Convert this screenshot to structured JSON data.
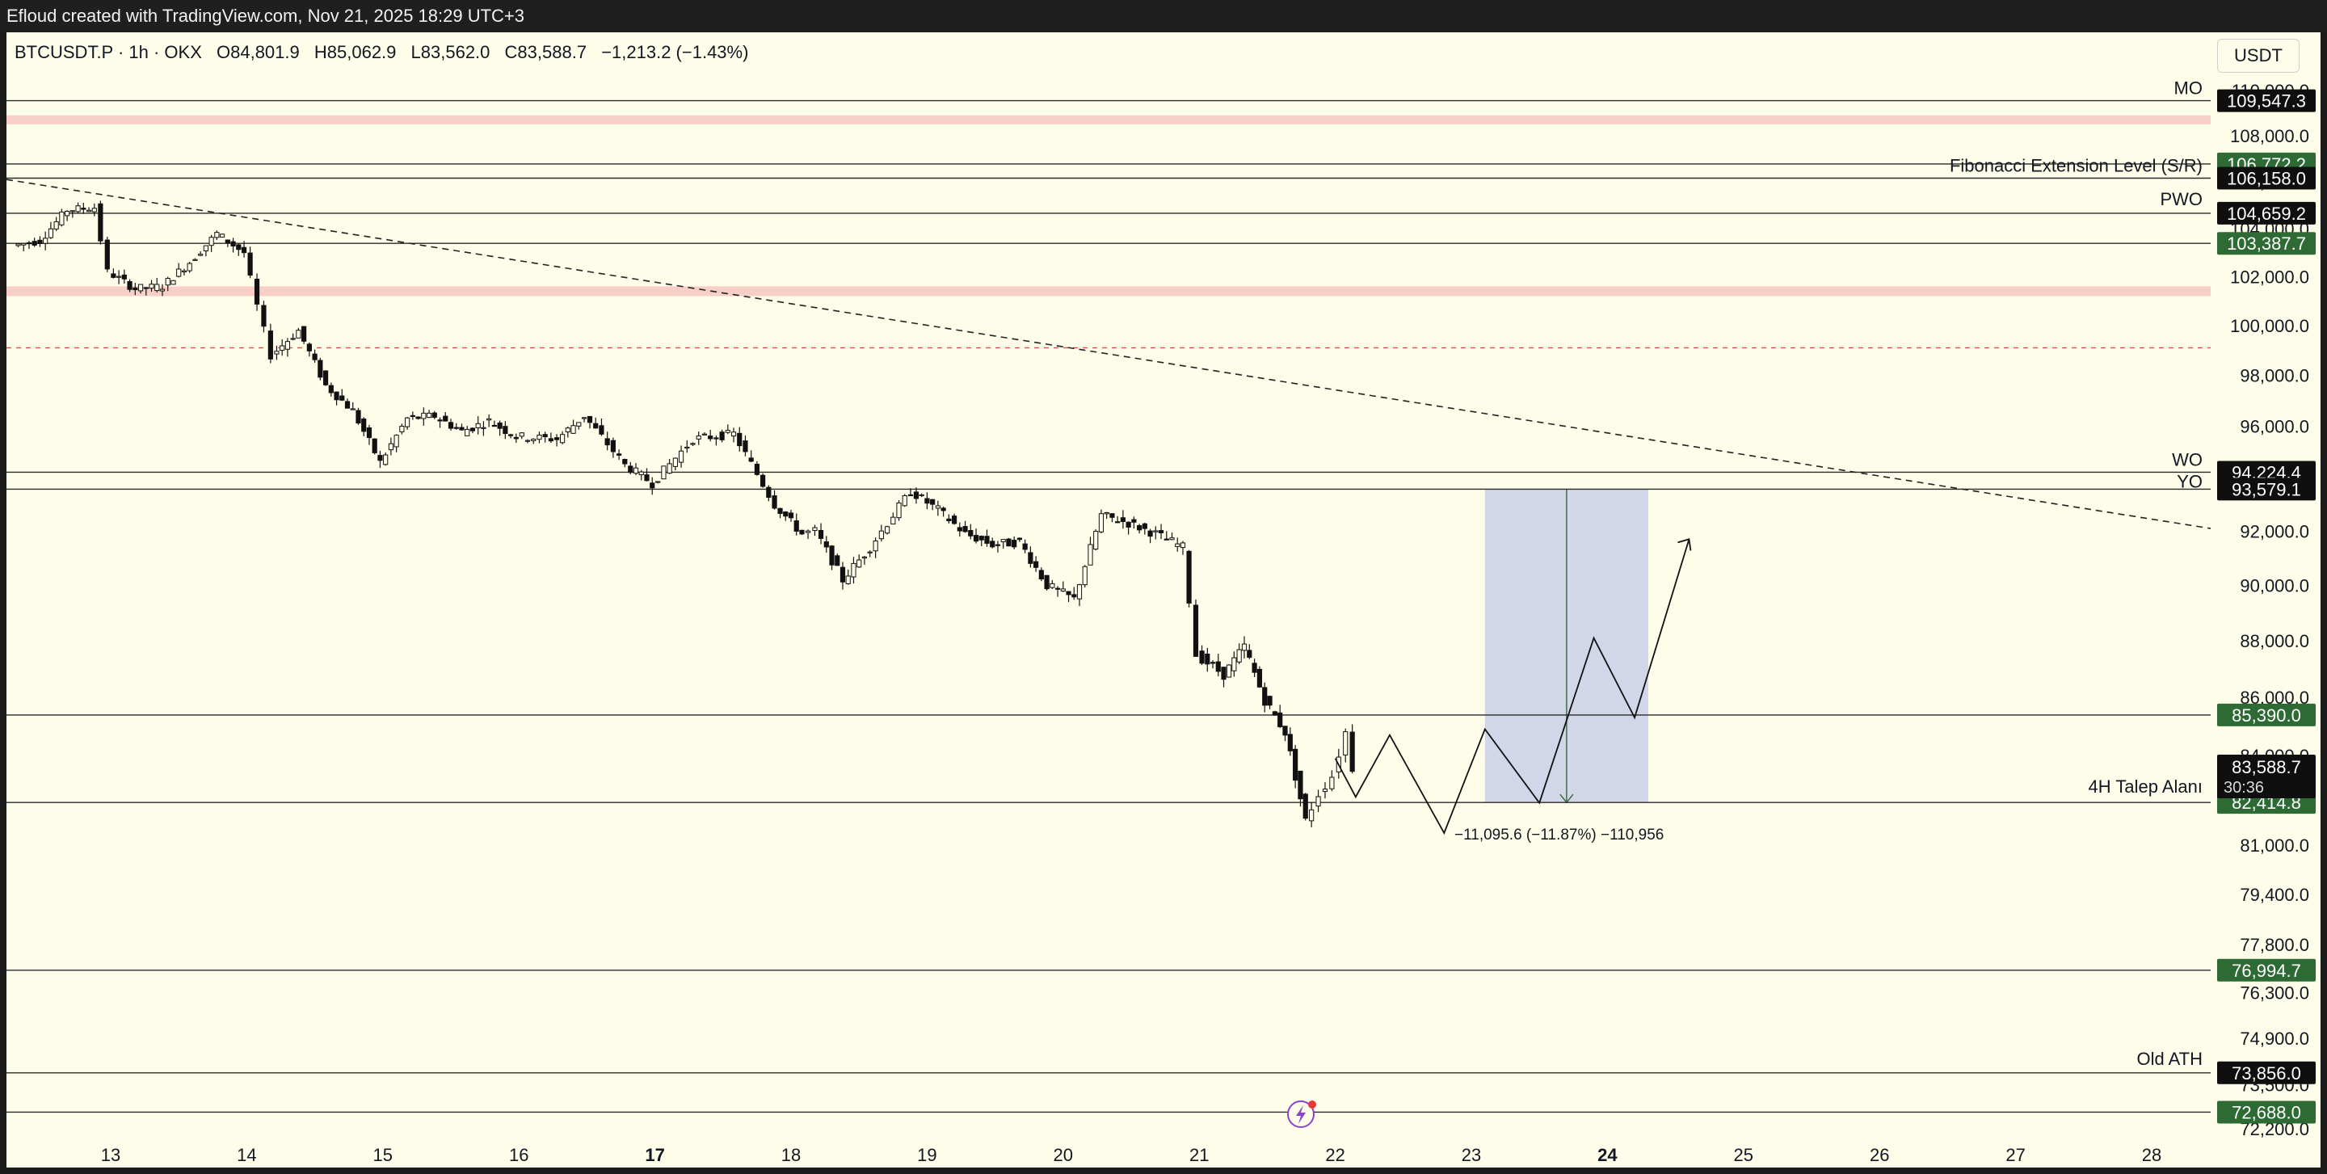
{
  "header": {
    "title": "Efloud created with TradingView.com, Nov 21, 2025 18:29 UTC+3"
  },
  "legend": {
    "symbol": "BTCUSDT.P · 1h · OKX",
    "open": "O84,801.9",
    "high": "H85,062.9",
    "low": "L83,562.0",
    "close": "C83,588.7",
    "change": "−1,213.2 (−1.43%)"
  },
  "unit_label": "USDT",
  "colors": {
    "background": "#fdfde9",
    "green_tag": "#2e6b34",
    "black_tag": "#0f0f0f",
    "zone": "#f6c7c0",
    "measure_box": "#c9cfe8",
    "dashed_red": "#e45050"
  },
  "chart_data": {
    "type": "candlestick",
    "x_ticks": [
      "13",
      "14",
      "15",
      "16",
      "17",
      "18",
      "19",
      "20",
      "21",
      "22",
      "23",
      "24",
      "25",
      "26",
      "27",
      "28"
    ],
    "y_ticks": [
      "110,000.0",
      "108,000.0",
      "106,000.0",
      "104,000.0",
      "102,000.0",
      "100,000.0",
      "98,000.0",
      "96,000.0",
      "92,000.0",
      "90,000.0",
      "88,000.0",
      "86,000.0",
      "84,000.0",
      "81,000.0",
      "79,400.0",
      "77,800.0",
      "76,300.0",
      "74,900.0",
      "73,500.0",
      "72,200.0"
    ],
    "y_log": true,
    "price_path": [
      [
        12.3,
        103300
      ],
      [
        12.5,
        103500
      ],
      [
        12.7,
        104800
      ],
      [
        12.9,
        104900
      ],
      [
        13.0,
        102200
      ],
      [
        13.2,
        101500
      ],
      [
        13.4,
        101600
      ],
      [
        13.6,
        102600
      ],
      [
        13.8,
        103800
      ],
      [
        14.0,
        103000
      ],
      [
        14.1,
        100800
      ],
      [
        14.2,
        98800
      ],
      [
        14.4,
        99800
      ],
      [
        14.6,
        97600
      ],
      [
        14.8,
        96600
      ],
      [
        15.0,
        94600
      ],
      [
        15.2,
        96300
      ],
      [
        15.4,
        96400
      ],
      [
        15.6,
        95800
      ],
      [
        15.8,
        96200
      ],
      [
        16.0,
        95600
      ],
      [
        16.3,
        95500
      ],
      [
        16.5,
        96400
      ],
      [
        16.8,
        94500
      ],
      [
        17.0,
        93800
      ],
      [
        17.3,
        95500
      ],
      [
        17.6,
        95700
      ],
      [
        17.9,
        93000
      ],
      [
        18.1,
        91900
      ],
      [
        18.2,
        92000
      ],
      [
        18.4,
        90200
      ],
      [
        18.6,
        91400
      ],
      [
        18.9,
        93500
      ],
      [
        19.1,
        92800
      ],
      [
        19.3,
        91900
      ],
      [
        19.5,
        91500
      ],
      [
        19.7,
        91600
      ],
      [
        19.9,
        90000
      ],
      [
        20.1,
        89500
      ],
      [
        20.3,
        92600
      ],
      [
        20.5,
        92300
      ],
      [
        20.7,
        91900
      ],
      [
        20.9,
        91400
      ],
      [
        21.0,
        87500
      ],
      [
        21.2,
        86800
      ],
      [
        21.35,
        87800
      ],
      [
        21.5,
        85900
      ],
      [
        21.65,
        84800
      ],
      [
        21.8,
        81800
      ],
      [
        21.9,
        82700
      ],
      [
        22.0,
        83300
      ],
      [
        22.1,
        84800
      ],
      [
        22.15,
        83588.7
      ]
    ],
    "annotation_price_axis": {
      "MO": "109,547.3",
      "fib_upper": "106,772.2",
      "fib": "106,158.0",
      "PWO": "104,659.2",
      "level_103": "103,387.7",
      "WO": "94,224.4",
      "YO": "93,579.1",
      "level_85": "85,390.0",
      "last_price": "83,588.7",
      "countdown": "30:36",
      "talep": "82,414.8",
      "level_77": "76,994.7",
      "old_ath": "73,856.0",
      "level_72": "72,688.0"
    },
    "line_labels": {
      "MO": "MO",
      "fib": "Fibonacci Extension Level (S/R)",
      "PWO": "PWO",
      "WO": "WO",
      "YO": "YO",
      "talep": "4H Talep Alanı",
      "old_ath": "Old ATH"
    },
    "measure_label": "−11,095.6 (−11.87%) −110,956"
  }
}
